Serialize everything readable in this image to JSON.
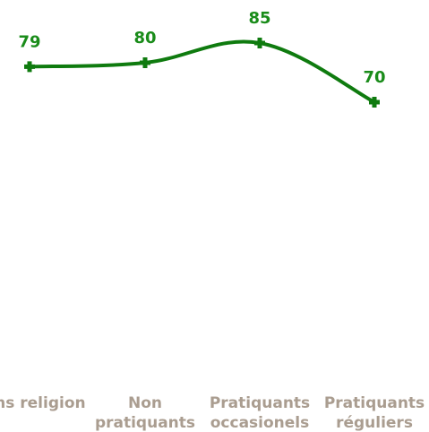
{
  "chart_data": {
    "type": "line",
    "categories": [
      [
        "Sans religion"
      ],
      [
        "Non",
        "pratiquants"
      ],
      [
        "Pratiquants",
        "occasionels"
      ],
      [
        "Pratiquants",
        "réguliers"
      ]
    ],
    "series": [
      {
        "values": [
          79,
          80,
          85,
          70
        ]
      }
    ],
    "ylim": [
      0,
      100
    ],
    "grid": false,
    "legend": "none"
  },
  "colors": {
    "line": "#0f7b0f",
    "labels": "#1a8c1a",
    "categories": "#aa9d90"
  }
}
